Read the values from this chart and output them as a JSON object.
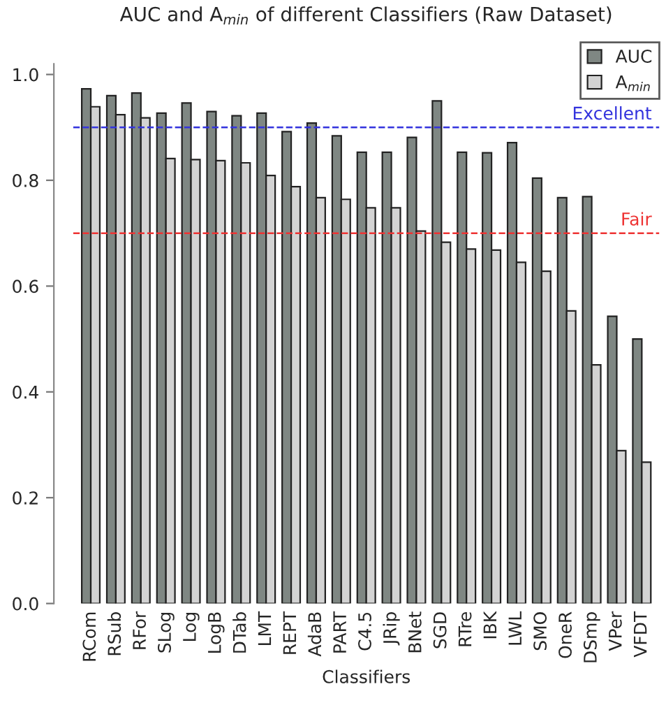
{
  "chart_data": {
    "type": "bar",
    "title": "AUC and A$_{min}$ of different Classifiers (Raw Dataset)",
    "xlabel": "Classifiers",
    "categories": [
      "RCom",
      "RSub",
      "RFor",
      "SLog",
      "Log",
      "LogB",
      "DTab",
      "LMT",
      "REPT",
      "AdaB",
      "PART",
      "C4.5",
      "JRip",
      "BNet",
      "SGD",
      "RTre",
      "IBK",
      "LWL",
      "SMO",
      "OneR",
      "DSmp",
      "VPer",
      "VFDT"
    ],
    "series": [
      {
        "name": "AUC",
        "color": "#7f8783",
        "values": [
          0.973,
          0.96,
          0.965,
          0.927,
          0.946,
          0.93,
          0.922,
          0.927,
          0.892,
          0.908,
          0.884,
          0.853,
          0.853,
          0.881,
          0.95,
          0.853,
          0.852,
          0.871,
          0.804,
          0.767,
          0.769,
          0.543,
          0.5
        ]
      },
      {
        "name": "A$_{min}$",
        "color": "#d3d3d3",
        "values": [
          0.939,
          0.924,
          0.918,
          0.841,
          0.839,
          0.837,
          0.833,
          0.809,
          0.788,
          0.767,
          0.764,
          0.748,
          0.748,
          0.704,
          0.683,
          0.67,
          0.668,
          0.645,
          0.628,
          0.553,
          0.451,
          0.289,
          0.267
        ]
      }
    ],
    "ylim": [
      0,
      1.02
    ],
    "yticks": [
      {
        "value": 0,
        "label": "0.0"
      },
      {
        "value": 0.2,
        "label": "0.2"
      },
      {
        "value": 0.4,
        "label": "0.4"
      },
      {
        "value": 0.6,
        "label": "0.6"
      },
      {
        "value": 0.8,
        "label": "0.8"
      },
      {
        "value": 1,
        "label": "1.0"
      }
    ],
    "ref_lines": [
      {
        "axis": "y",
        "value": 0.9,
        "label": "Excellent",
        "color": "#3333dd",
        "line_style": "dashed"
      },
      {
        "axis": "y",
        "value": 0.7,
        "label": "Fair",
        "color": "#ee3333",
        "line_style": "dashed"
      }
    ],
    "legend": "top right",
    "grid": false
  }
}
